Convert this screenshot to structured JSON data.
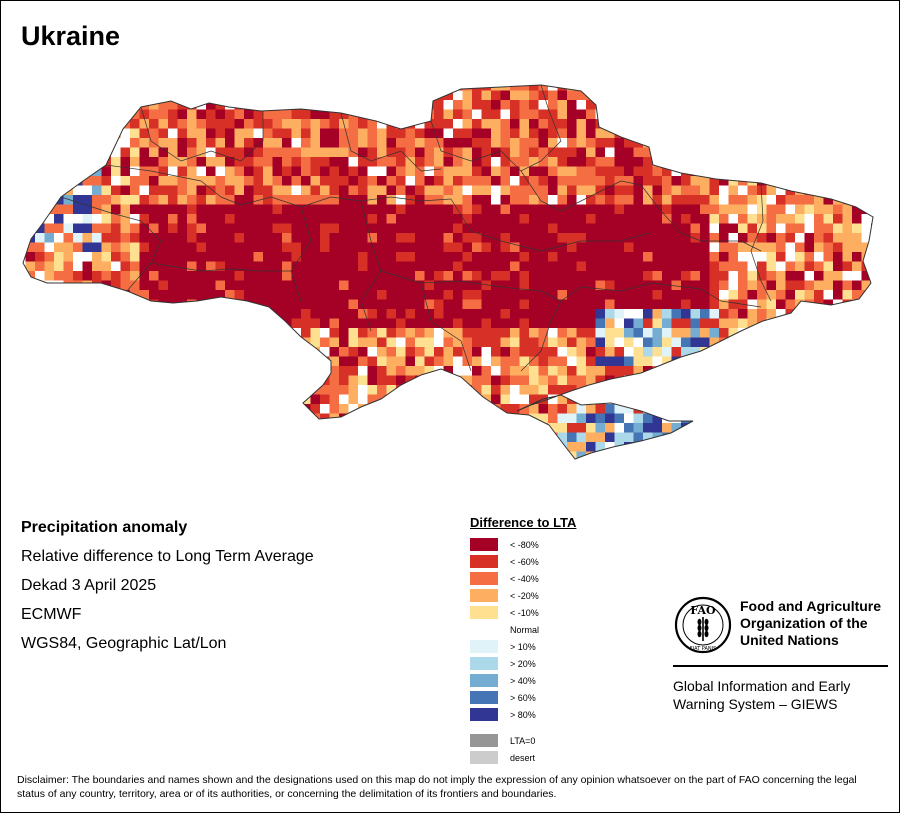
{
  "title": "Ukraine",
  "info": {
    "heading": "Precipitation anomaly",
    "subtitle": "Relative difference to Long Term Average",
    "period": "Dekad 3 April 2025",
    "source": "ECMWF",
    "projection": "WGS84, Geographic Lat/Lon"
  },
  "legend": {
    "title": "Difference to LTA",
    "items": [
      {
        "label": "< -80%",
        "color": "#a50026"
      },
      {
        "label": "< -60%",
        "color": "#d73027"
      },
      {
        "label": "< -40%",
        "color": "#f46d43"
      },
      {
        "label": "< -20%",
        "color": "#fdae61"
      },
      {
        "label": "< -10%",
        "color": "#fee090"
      },
      {
        "label": "Normal",
        "color": "#ffffff"
      },
      {
        "label": "> 10%",
        "color": "#e0f3f8"
      },
      {
        "label": "> 20%",
        "color": "#abd9e9"
      },
      {
        "label": "> 40%",
        "color": "#74add1"
      },
      {
        "label": "> 60%",
        "color": "#4575b4"
      },
      {
        "label": "> 80%",
        "color": "#313695"
      }
    ],
    "extra": [
      {
        "label": "LTA=0",
        "color": "#969696"
      },
      {
        "label": "desert",
        "color": "#cccccc"
      }
    ]
  },
  "logo": {
    "org_name": "Food and Agriculture Organization of the United Nations",
    "fao_letters": "FAO",
    "motto": "FIAT PANIS",
    "system_name": "Global Information and Early Warning System – GIEWS"
  },
  "disclaimer": "Disclaimer: The boundaries and names shown and the designations used on this map do not imply the expression of any opinion whatsoever on the part of FAO concerning the legal status of any country, territory, area or of its authorities, or concerning the delimitation of its frontiers and boundaries."
}
